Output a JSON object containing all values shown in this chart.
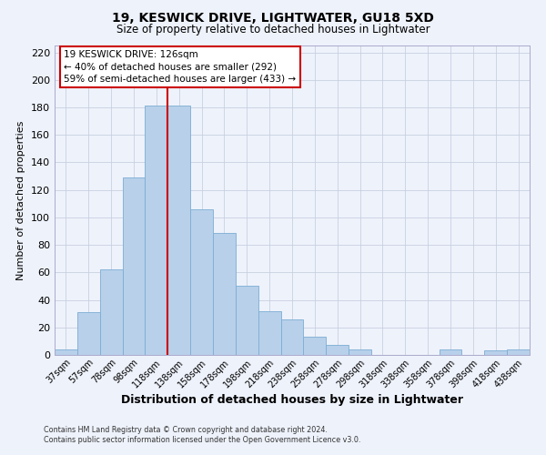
{
  "title": "19, KESWICK DRIVE, LIGHTWATER, GU18 5XD",
  "subtitle": "Size of property relative to detached houses in Lightwater",
  "xlabel": "Distribution of detached houses by size in Lightwater",
  "ylabel": "Number of detached properties",
  "bar_labels": [
    "37sqm",
    "57sqm",
    "78sqm",
    "98sqm",
    "118sqm",
    "138sqm",
    "158sqm",
    "178sqm",
    "198sqm",
    "218sqm",
    "238sqm",
    "258sqm",
    "278sqm",
    "298sqm",
    "318sqm",
    "338sqm",
    "358sqm",
    "378sqm",
    "398sqm",
    "418sqm",
    "438sqm"
  ],
  "bar_heights": [
    4,
    31,
    62,
    129,
    181,
    181,
    106,
    89,
    50,
    32,
    26,
    13,
    7,
    4,
    0,
    0,
    0,
    4,
    0,
    3,
    4
  ],
  "bar_color": "#b8d0ea",
  "bar_edge_color": "#7badd4",
  "grid_color": "#c8d0e0",
  "background_color": "#eef2fb",
  "vline_x_index": 4,
  "vline_color": "#cc0000",
  "annotation_title": "19 KESWICK DRIVE: 126sqm",
  "annotation_line1": "← 40% of detached houses are smaller (292)",
  "annotation_line2": "59% of semi-detached houses are larger (433) →",
  "annotation_box_color": "#ffffff",
  "annotation_box_edge": "#cc0000",
  "ylim": [
    0,
    225
  ],
  "yticks": [
    0,
    20,
    40,
    60,
    80,
    100,
    120,
    140,
    160,
    180,
    200,
    220
  ],
  "footnote1": "Contains HM Land Registry data © Crown copyright and database right 2024.",
  "footnote2": "Contains public sector information licensed under the Open Government Licence v3.0."
}
